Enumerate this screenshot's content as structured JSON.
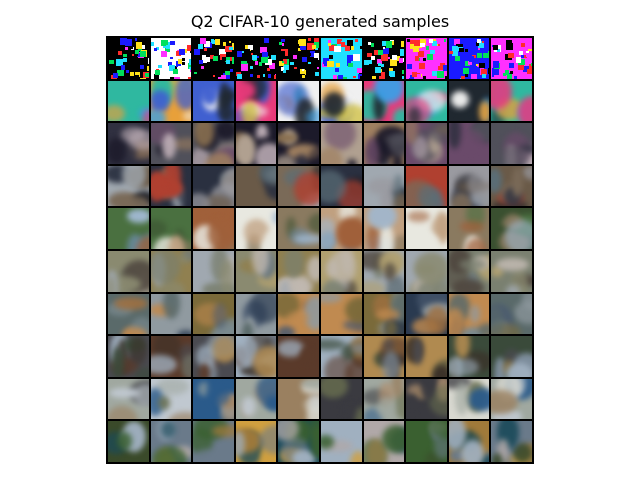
{
  "title": "Q2 CIFAR-10 generated samples",
  "grid": {
    "rows": 10,
    "cols": 10,
    "row_palettes": [
      [
        "#ff2b2b",
        "#ffffff",
        "#1a1aff",
        "#00e05a",
        "#ffe21a",
        "#000000",
        "#ff30ff",
        "#20e0ff"
      ],
      [
        "#3aa0e8",
        "#e8a03a",
        "#2fb8a0",
        "#e83a7a",
        "#f0f0f0",
        "#4060d0",
        "#d0c040",
        "#202830"
      ],
      [
        "#1c1a2a",
        "#6a4a6a",
        "#c0b0b8",
        "#8a7050",
        "#303040",
        "#a08060",
        "#b0a090",
        "#50505a"
      ],
      [
        "#a0a8b0",
        "#7a6a58",
        "#5a6e78",
        "#2a3040",
        "#b04030",
        "#1a1a20",
        "#6a5a48",
        "#9a9aa0"
      ],
      [
        "#6a8aa0",
        "#c0a080",
        "#8a7a60",
        "#a0b8d0",
        "#e8e8e0",
        "#a0603a",
        "#4a7040",
        "#3a5030"
      ],
      [
        "#8a8a70",
        "#c0b8b0",
        "#504840",
        "#a0a8b0",
        "#908050",
        "#7a8070",
        "#6a7880",
        "#b0a070"
      ],
      [
        "#7a6a3a",
        "#5a6a6a",
        "#4a5a70",
        "#2a3a50",
        "#909aa0",
        "#a07040",
        "#7a8a90",
        "#c08a50"
      ],
      [
        "#5a3a2a",
        "#a0b0c0",
        "#4a4a50",
        "#6a6a60",
        "#3a3028",
        "#b08a50",
        "#8090a0",
        "#3a4a3a"
      ],
      [
        "#9a8060",
        "#c0c8d0",
        "#6a7050",
        "#3a3a40",
        "#b09070",
        "#2a5a8a",
        "#d8d8d0",
        "#a0a8a0"
      ],
      [
        "#6a7a8a",
        "#3a4a2a",
        "#a07a3a",
        "#d0a040",
        "#a0b0c0",
        "#1a4a5a",
        "#3a6030",
        "#b0a8a8"
      ]
    ]
  }
}
